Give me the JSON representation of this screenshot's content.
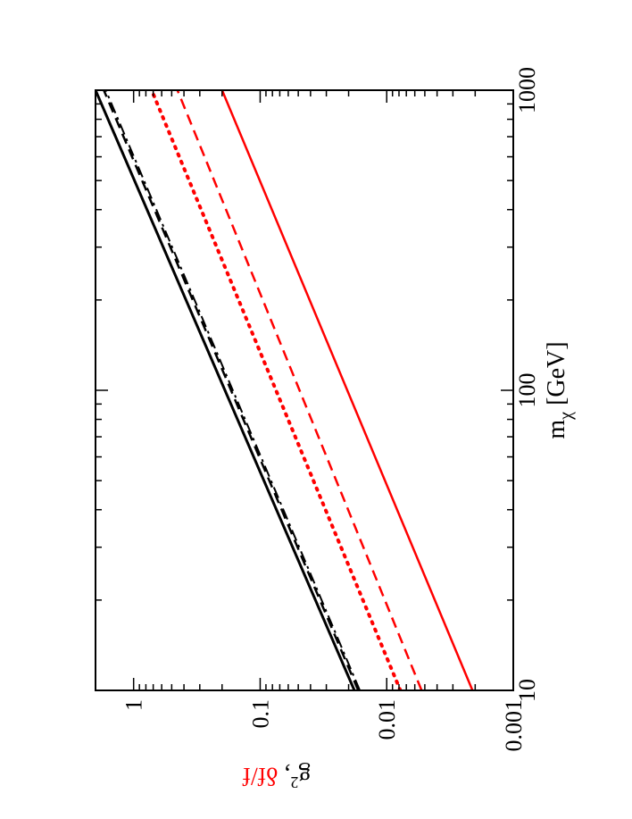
{
  "chart_data": {
    "type": "line",
    "orientation": "rotated-90-clockwise",
    "title": "",
    "xlabel": "m",
    "xlabel_subscript": "χ",
    "xlabel_unit": "[GeV]",
    "ylabel_black": "g",
    "ylabel_black_superscript": "2",
    "ylabel_separator": ", ",
    "ylabel_red": "δf/f",
    "x_scale": "log",
    "y_scale": "log",
    "xlim": [
      10,
      1000
    ],
    "ylim": [
      0.001,
      2
    ],
    "x_ticks": [
      {
        "value": 10,
        "label": "10"
      },
      {
        "value": 100,
        "label": "100"
      },
      {
        "value": 1000,
        "label": "1000"
      }
    ],
    "y_ticks": [
      {
        "value": 0.001,
        "label": "0.001"
      },
      {
        "value": 0.01,
        "label": "0.01"
      },
      {
        "value": 0.1,
        "label": "0.1"
      },
      {
        "value": 1,
        "label": "1"
      }
    ],
    "grid": false,
    "legend": "none",
    "series": [
      {
        "color": "#000000",
        "dash": "solid",
        "width": 3,
        "x": [
          10,
          1000
        ],
        "y": [
          0.018,
          2.0
        ]
      },
      {
        "color": "#000000",
        "dash": "dash",
        "width": 2.5,
        "x": [
          10,
          1000
        ],
        "y": [
          0.0168,
          1.72
        ]
      },
      {
        "color": "#000000",
        "dash": "dashdot",
        "width": 2,
        "x": [
          10,
          1000
        ],
        "y": [
          0.0163,
          1.66
        ]
      },
      {
        "color": "#ff0000",
        "dash": "dot",
        "width": 4,
        "x": [
          10,
          1000
        ],
        "y": [
          0.0078,
          0.72
        ]
      },
      {
        "color": "#ff0000",
        "dash": "dash",
        "width": 2.5,
        "x": [
          10,
          1000
        ],
        "y": [
          0.0053,
          0.45
        ]
      },
      {
        "color": "#ff0000",
        "dash": "solid",
        "width": 2.5,
        "x": [
          10,
          1000
        ],
        "y": [
          0.0021,
          0.2
        ]
      }
    ]
  }
}
